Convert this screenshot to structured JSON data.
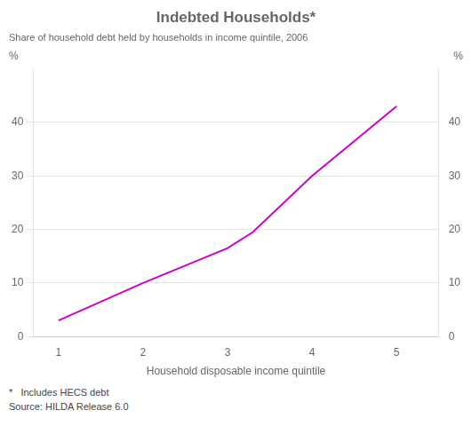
{
  "chart_data": {
    "type": "line",
    "title": "Indebted Households*",
    "subtitle": "Share of household debt held by households in income quintile, 2006",
    "xlabel": "Household disposable income quintile",
    "ylabel": "%",
    "y2label": "%",
    "footnotes": [
      "*   Includes HECS debt",
      "Source: HILDA Release 6.0"
    ],
    "x": [
      1,
      2,
      3,
      3.3,
      4,
      5
    ],
    "series": [
      {
        "values": [
          3,
          10,
          16.5,
          19.5,
          30,
          43
        ],
        "color": "#CC00CC",
        "marker": "none",
        "line_style": "solid"
      }
    ],
    "xlim": [
      0.7,
      5.5
    ],
    "xticks": [
      1,
      2,
      3,
      4,
      5
    ],
    "ylim": [
      0,
      50
    ],
    "yticks": [
      0,
      10,
      20,
      30,
      40
    ],
    "y2lim": [
      0,
      50
    ],
    "y2ticks": [
      0,
      10,
      20,
      30,
      40
    ],
    "grid": "y",
    "legend": "none"
  }
}
